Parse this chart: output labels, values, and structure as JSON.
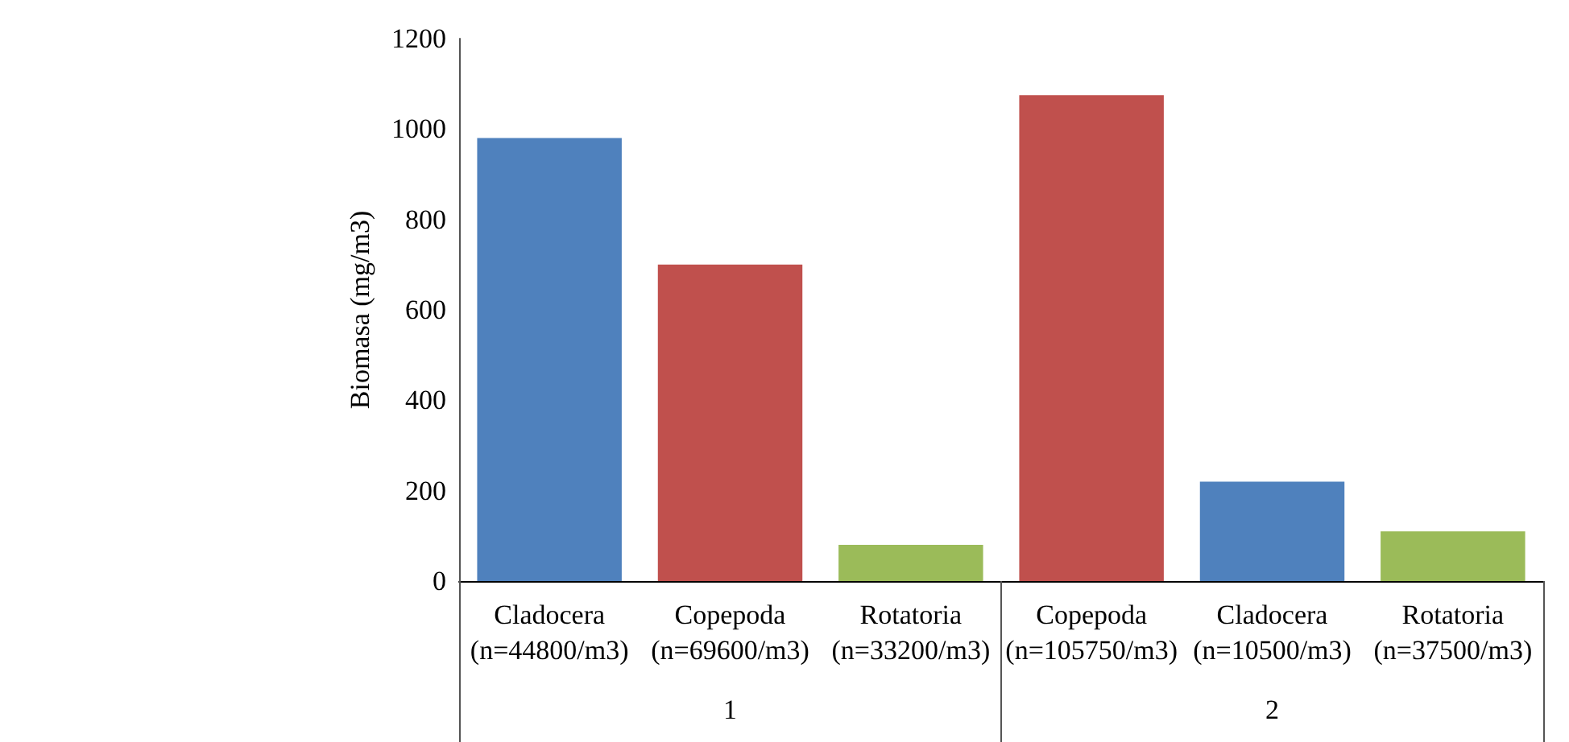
{
  "chart_data": {
    "type": "bar",
    "ylabel": "Biomasa (mg/m3)",
    "categories": [
      "Cladocera\n(n=44800/m3)",
      "Copepoda\n(n=69600/m3)",
      "Rotatoria\n(n=33200/m3)",
      "Copepoda\n(n=105750/m3)",
      "Cladocera\n(n=10500/m3)",
      "Rotatoria\n(n=37500/m3)"
    ],
    "values": [
      980,
      700,
      80,
      1075,
      220,
      110
    ],
    "colors": [
      "#4f81bd",
      "#c0504d",
      "#9bbb59",
      "#c0504d",
      "#4f81bd",
      "#9bbb59"
    ],
    "ylim": [
      0,
      1200
    ],
    "yticks": [
      0,
      200,
      400,
      600,
      800,
      1000,
      1200
    ],
    "annotations": [
      "1",
      "2"
    ],
    "grid": false
  }
}
